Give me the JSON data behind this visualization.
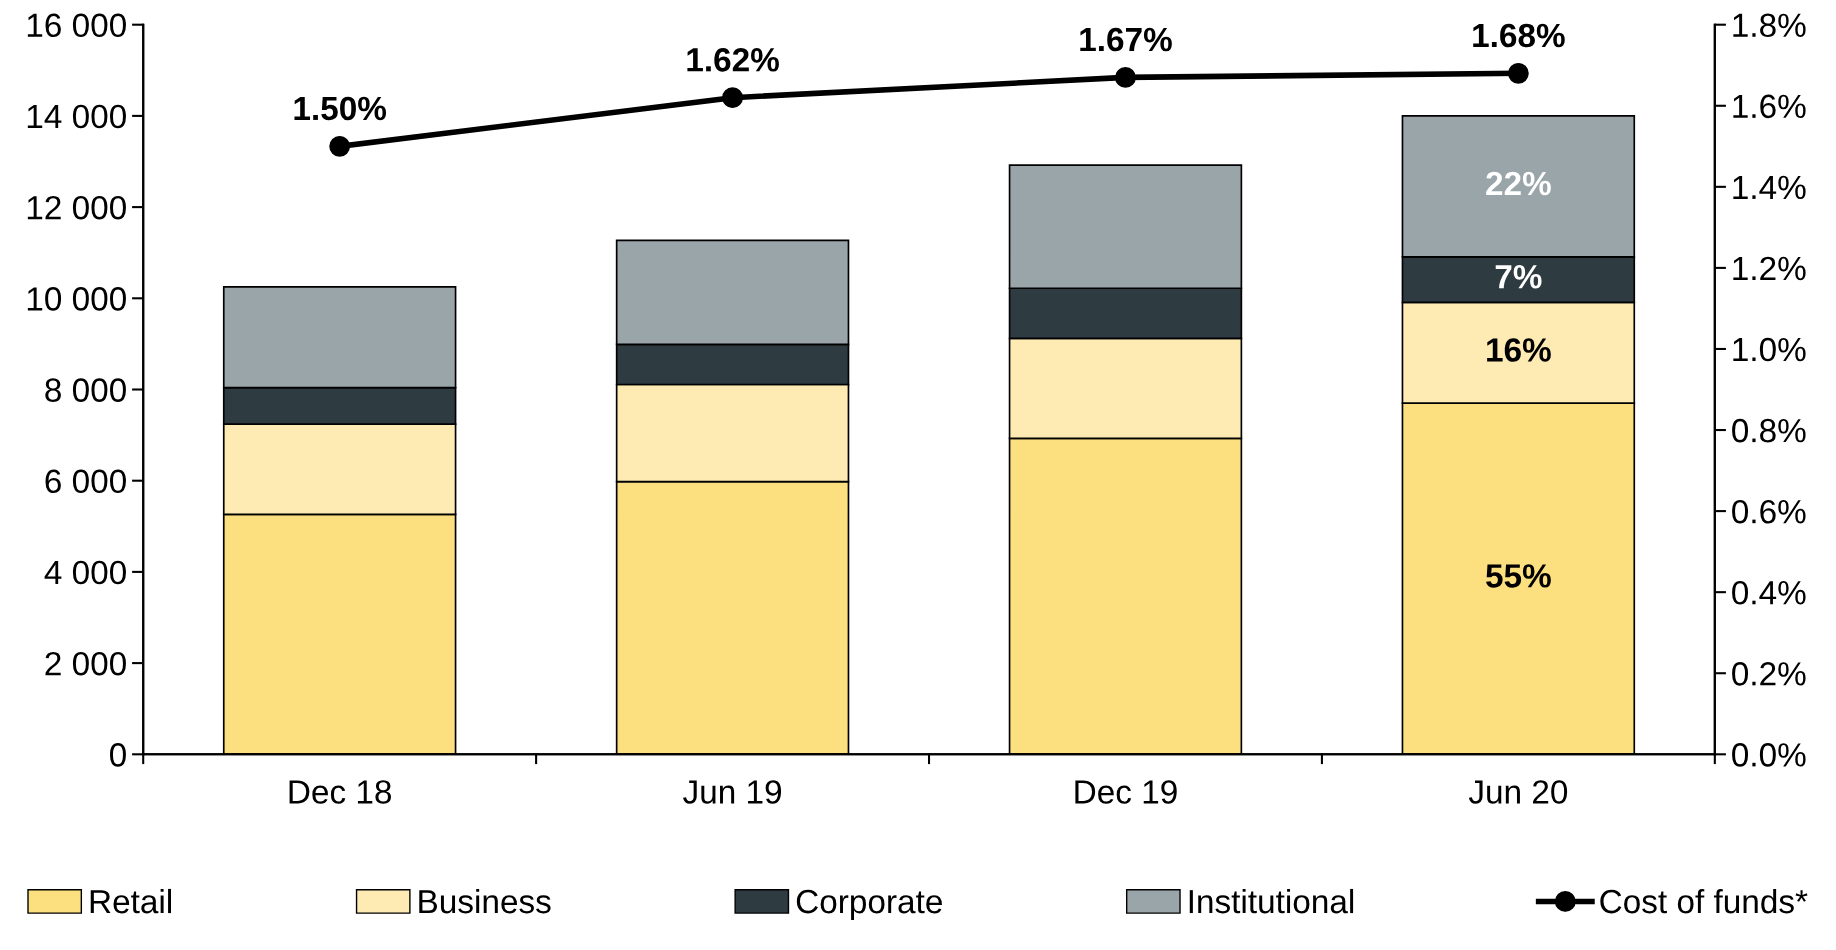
{
  "chart_data": {
    "type": "bar",
    "stacked": true,
    "categories": [
      "Dec 18",
      "Jun 19",
      "Dec 19",
      "Jun 20"
    ],
    "series": [
      {
        "name": "Retail",
        "color": "#fcdf7e",
        "values": [
          5260,
          5980,
          6930,
          7700
        ]
      },
      {
        "name": "Business",
        "color": "#fdebb3",
        "values": [
          1980,
          2130,
          2190,
          2210
        ]
      },
      {
        "name": "Corporate",
        "color": "#2e3b40",
        "values": [
          800,
          880,
          1100,
          1000
        ]
      },
      {
        "name": "Institutional",
        "color": "#9aa5aa",
        "values": [
          2210,
          2280,
          2700,
          3090
        ]
      },
      {
        "name": "Cost of funds*",
        "type": "line",
        "axis": "y2",
        "color": "#000000",
        "marker": "circle",
        "line_style": "solid",
        "values": [
          1.5,
          1.62,
          1.67,
          1.68
        ],
        "value_labels": [
          "1.50%",
          "1.62%",
          "1.67%",
          "1.68%"
        ]
      }
    ],
    "ylim": [
      0,
      16000
    ],
    "yticks": [
      {
        "value": 0,
        "label": "0"
      },
      {
        "value": 2000,
        "label": "2 000"
      },
      {
        "value": 4000,
        "label": "4 000"
      },
      {
        "value": 6000,
        "label": "6 000"
      },
      {
        "value": 8000,
        "label": "8 000"
      },
      {
        "value": 10000,
        "label": "10 000"
      },
      {
        "value": 12000,
        "label": "12 000"
      },
      {
        "value": 14000,
        "label": "14 000"
      },
      {
        "value": 16000,
        "label": "16 000"
      }
    ],
    "y2lim": [
      0,
      1.8
    ],
    "y2ticks": [
      {
        "value": 0,
        "label": "0.0%"
      },
      {
        "value": 0.2,
        "label": "0.2%"
      },
      {
        "value": 0.4,
        "label": "0.4%"
      },
      {
        "value": 0.6,
        "label": "0.6%"
      },
      {
        "value": 0.8,
        "label": "0.8%"
      },
      {
        "value": 1.0,
        "label": "1.0%"
      },
      {
        "value": 1.2,
        "label": "1.2%"
      },
      {
        "value": 1.4,
        "label": "1.4%"
      },
      {
        "value": 1.6,
        "label": "1.6%"
      },
      {
        "value": 1.8,
        "label": "1.8%"
      }
    ],
    "annotations": [
      "55%",
      "16%",
      "7%",
      "22%"
    ],
    "grid": false,
    "legend": "bottom"
  }
}
